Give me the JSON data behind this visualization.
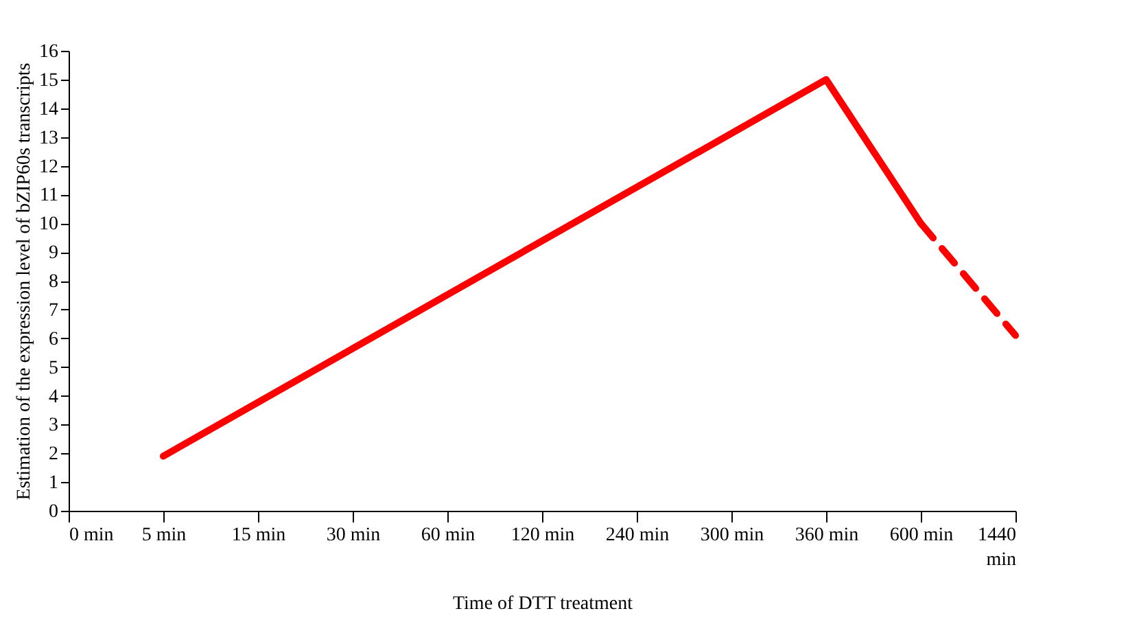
{
  "chart_data": {
    "type": "line",
    "xlabel": "Time of DTT treatment",
    "ylabel": "Estimation of the expression level of bZIP60s transcripts",
    "categories": [
      "0 min",
      "5 min",
      "15 min",
      "30 min",
      "60 min",
      "120 min",
      "240 min",
      "300 min",
      "360 min",
      "600 min",
      "1440 min"
    ],
    "series": [
      {
        "color": "#ff0000",
        "line_style": "solid",
        "values": [
          null,
          1.9,
          null,
          null,
          null,
          null,
          null,
          null,
          15,
          10,
          null
        ]
      },
      {
        "color": "#ff0000",
        "line_style": "dashed",
        "values": [
          null,
          null,
          null,
          null,
          null,
          null,
          null,
          null,
          null,
          10,
          6.1
        ]
      }
    ],
    "ylim": [
      0,
      16
    ],
    "yticks": [
      0,
      1,
      2,
      3,
      4,
      5,
      6,
      7,
      8,
      9,
      10,
      11,
      12,
      13,
      14,
      15,
      16
    ],
    "grid": false,
    "legend": false
  }
}
